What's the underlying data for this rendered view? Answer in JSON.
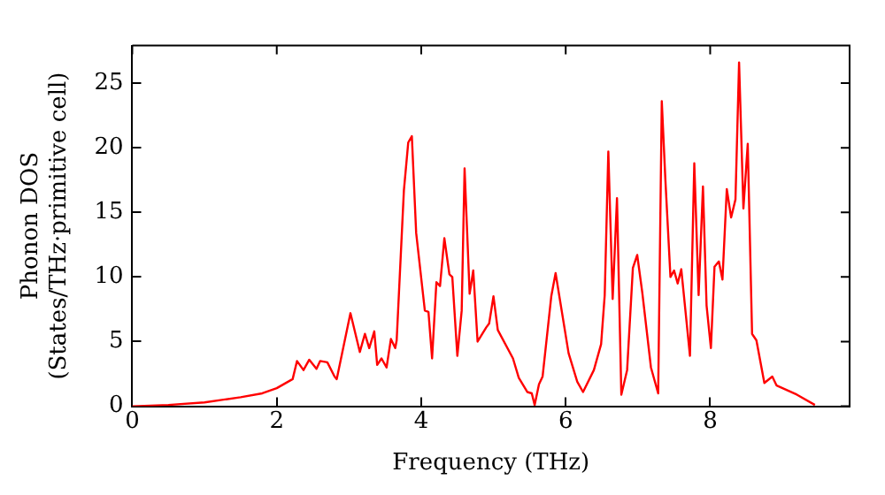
{
  "chart_data": {
    "type": "line",
    "xlabel": "Frequency (THz)",
    "ylabel": "Phonon DOS\n(States/THz·primitive cell)",
    "xlim": [
      0,
      9.93
    ],
    "ylim": [
      0,
      27.9
    ],
    "xticks": [
      0,
      2,
      4,
      6,
      8
    ],
    "yticks": [
      0,
      5,
      10,
      15,
      20,
      25
    ],
    "grid": false,
    "legend": false,
    "marker": "none",
    "line_style": "solid",
    "x": [
      0,
      0.5,
      1,
      1.5,
      1.8,
      2.0,
      2.22,
      2.28,
      2.37,
      2.45,
      2.55,
      2.6,
      2.7,
      2.8,
      2.83,
      3.02,
      3.15,
      3.22,
      3.28,
      3.35,
      3.39,
      3.45,
      3.52,
      3.58,
      3.64,
      3.66,
      3.76,
      3.82,
      3.87,
      3.93,
      4.05,
      4.1,
      4.15,
      4.21,
      4.26,
      4.32,
      4.39,
      4.43,
      4.5,
      4.56,
      4.6,
      4.67,
      4.72,
      4.78,
      4.9,
      4.94,
      5.0,
      5.06,
      5.27,
      5.35,
      5.47,
      5.53,
      5.57,
      5.63,
      5.68,
      5.8,
      5.86,
      6.04,
      6.16,
      6.24,
      6.39,
      6.49,
      6.54,
      6.59,
      6.65,
      6.71,
      6.77,
      6.85,
      6.93,
      6.99,
      7.06,
      7.18,
      7.28,
      7.33,
      7.38,
      7.45,
      7.5,
      7.55,
      7.6,
      7.72,
      7.78,
      7.84,
      7.9,
      7.95,
      8.01,
      8.06,
      8.12,
      8.17,
      8.23,
      8.29,
      8.35,
      8.4,
      8.46,
      8.52,
      8.58,
      8.64,
      8.75,
      8.86,
      8.92,
      9.2,
      9.45
    ],
    "series": [
      {
        "color": "#ff0000",
        "values": [
          0,
          0.1,
          0.3,
          0.7,
          1.0,
          1.4,
          2.1,
          3.5,
          2.8,
          3.6,
          2.9,
          3.5,
          3.4,
          2.3,
          2.1,
          7.2,
          4.2,
          5.6,
          4.5,
          5.8,
          3.2,
          3.7,
          3.0,
          5.2,
          4.5,
          5.1,
          16.7,
          20.4,
          20.9,
          13.4,
          7.4,
          7.3,
          3.7,
          9.6,
          9.3,
          13.0,
          10.2,
          10.0,
          3.9,
          7.4,
          18.4,
          8.7,
          10.5,
          5.0,
          6.1,
          6.4,
          8.5,
          5.9,
          3.7,
          2.2,
          1.1,
          1.0,
          0.1,
          1.7,
          2.3,
          8.5,
          10.3,
          4.1,
          1.9,
          1.1,
          2.8,
          4.8,
          8.6,
          19.7,
          8.3,
          16.1,
          0.9,
          2.8,
          10.7,
          11.7,
          8.8,
          3.0,
          1.0,
          23.6,
          17.5,
          10.0,
          10.5,
          9.5,
          10.6,
          3.9,
          18.8,
          8.6,
          17.0,
          7.8,
          4.5,
          10.8,
          11.2,
          9.8,
          16.8,
          14.6,
          16.0,
          26.6,
          15.3,
          20.3,
          5.6,
          5.1,
          1.8,
          2.3,
          1.6,
          0.9,
          0.1
        ]
      }
    ]
  }
}
